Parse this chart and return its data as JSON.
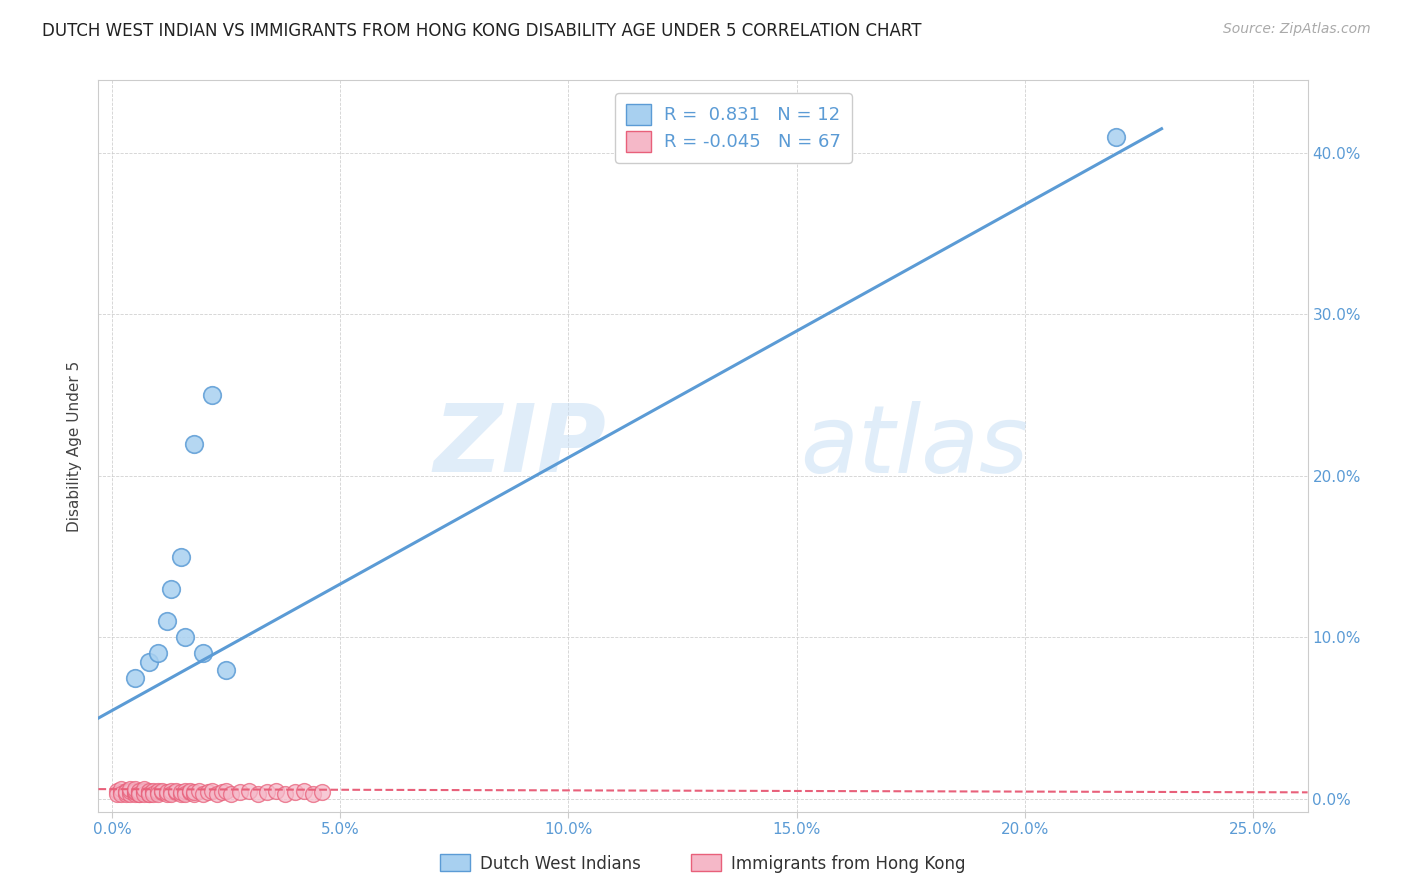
{
  "title": "DUTCH WEST INDIAN VS IMMIGRANTS FROM HONG KONG DISABILITY AGE UNDER 5 CORRELATION CHART",
  "source": "Source: ZipAtlas.com",
  "ylabel": "Disability Age Under 5",
  "x_ticks": [
    0.0,
    0.05,
    0.1,
    0.15,
    0.2,
    0.25
  ],
  "x_tick_labels": [
    "0.0%",
    "5.0%",
    "10.0%",
    "15.0%",
    "20.0%",
    "25.0%"
  ],
  "y_ticks": [
    0.0,
    0.1,
    0.2,
    0.3,
    0.4
  ],
  "y_tick_labels": [
    "0.0%",
    "10.0%",
    "20.0%",
    "30.0%",
    "40.0%"
  ],
  "xlim": [
    -0.003,
    0.262
  ],
  "ylim": [
    -0.008,
    0.445
  ],
  "blue_color": "#A8D0F0",
  "pink_color": "#F5B8C8",
  "blue_edge_color": "#5B9BD5",
  "pink_edge_color": "#E8607A",
  "blue_line_color": "#5B9BD5",
  "pink_line_color": "#E8607A",
  "R_blue": 0.831,
  "N_blue": 12,
  "R_pink": -0.045,
  "N_pink": 67,
  "legend_label_blue": "Dutch West Indians",
  "legend_label_pink": "Immigrants from Hong Kong",
  "watermark_zip": "ZIP",
  "watermark_atlas": "atlas",
  "blue_scatter_x": [
    0.005,
    0.008,
    0.01,
    0.013,
    0.015,
    0.016,
    0.02,
    0.025,
    0.022,
    0.018,
    0.012,
    0.22
  ],
  "blue_scatter_y": [
    0.075,
    0.085,
    0.09,
    0.13,
    0.15,
    0.1,
    0.09,
    0.08,
    0.25,
    0.22,
    0.11,
    0.41
  ],
  "pink_scatter_x": [
    0.001,
    0.001,
    0.002,
    0.002,
    0.002,
    0.003,
    0.003,
    0.003,
    0.004,
    0.004,
    0.004,
    0.005,
    0.005,
    0.005,
    0.005,
    0.006,
    0.006,
    0.006,
    0.006,
    0.007,
    0.007,
    0.007,
    0.007,
    0.008,
    0.008,
    0.008,
    0.008,
    0.009,
    0.009,
    0.009,
    0.01,
    0.01,
    0.01,
    0.011,
    0.011,
    0.012,
    0.012,
    0.013,
    0.013,
    0.014,
    0.014,
    0.015,
    0.015,
    0.016,
    0.016,
    0.017,
    0.017,
    0.018,
    0.018,
    0.019,
    0.02,
    0.021,
    0.022,
    0.023,
    0.024,
    0.025,
    0.026,
    0.028,
    0.03,
    0.032,
    0.034,
    0.036,
    0.038,
    0.04,
    0.042,
    0.044,
    0.046
  ],
  "pink_scatter_y": [
    0.005,
    0.003,
    0.004,
    0.006,
    0.003,
    0.005,
    0.003,
    0.004,
    0.003,
    0.005,
    0.006,
    0.003,
    0.004,
    0.005,
    0.006,
    0.003,
    0.004,
    0.005,
    0.003,
    0.004,
    0.005,
    0.003,
    0.006,
    0.003,
    0.004,
    0.005,
    0.003,
    0.004,
    0.005,
    0.003,
    0.004,
    0.005,
    0.003,
    0.004,
    0.005,
    0.003,
    0.004,
    0.005,
    0.003,
    0.004,
    0.005,
    0.003,
    0.004,
    0.005,
    0.003,
    0.004,
    0.005,
    0.003,
    0.004,
    0.005,
    0.003,
    0.004,
    0.005,
    0.003,
    0.004,
    0.005,
    0.003,
    0.004,
    0.005,
    0.003,
    0.004,
    0.005,
    0.003,
    0.004,
    0.005,
    0.003,
    0.004
  ],
  "blue_trend_x": [
    -0.003,
    0.23
  ],
  "blue_trend_y": [
    0.05,
    0.415
  ],
  "pink_trend_x": [
    -0.003,
    0.262
  ],
  "pink_trend_y": [
    0.006,
    0.004
  ],
  "tick_color": "#5B9BD5",
  "title_fontsize": 12,
  "source_fontsize": 10,
  "ylabel_fontsize": 11,
  "tick_fontsize": 11,
  "legend_fontsize": 13
}
